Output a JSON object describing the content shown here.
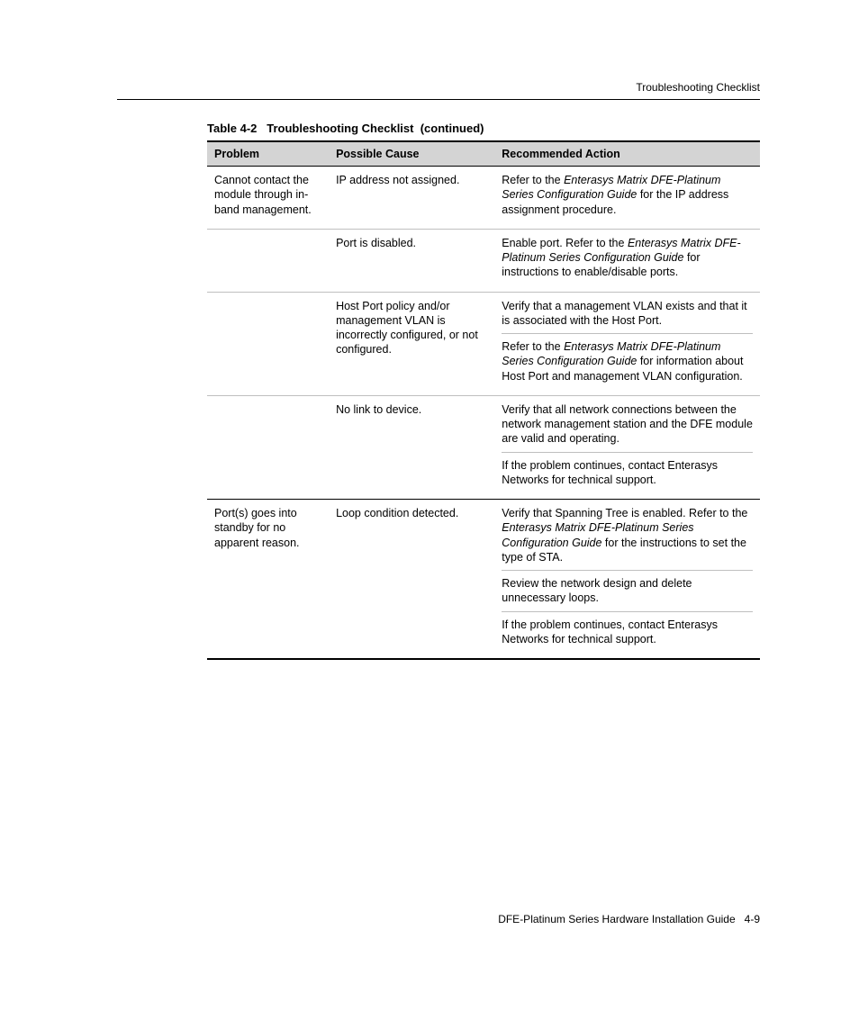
{
  "header": {
    "section_label": "Troubleshooting Checklist"
  },
  "table": {
    "caption_prefix": "Table 4-2",
    "caption_title": "Troubleshooting Checklist",
    "caption_suffix": "(continued)",
    "columns": {
      "problem": "Problem",
      "cause": "Possible Cause",
      "action": "Recommended Action"
    },
    "rows": [
      {
        "problem": "Cannot contact the module through in-band management.",
        "cause": "IP address not assigned.",
        "actions": [
          {
            "pre": "Refer to the ",
            "doc": "Enterasys Matrix DFE-Platinum Series Configuration Guide",
            "post": " for the IP address assignment procedure."
          }
        ]
      },
      {
        "problem": "",
        "cause": "Port is disabled.",
        "actions": [
          {
            "pre": "Enable port. Refer to the ",
            "doc": "Enterasys Matrix DFE-Platinum Series Configuration Guide",
            "post": " for instructions to enable/disable ports."
          }
        ]
      },
      {
        "problem": "",
        "cause": "Host Port policy and/or management VLAN is incorrectly configured, or not configured.",
        "actions": [
          {
            "pre": "Verify that a management VLAN exists and that it is associated with the Host Port.",
            "doc": "",
            "post": ""
          },
          {
            "pre": "Refer to the ",
            "doc": "Enterasys Matrix DFE-Platinum Series Configuration Guide",
            "post": " for information about Host Port and management VLAN configuration."
          }
        ]
      },
      {
        "problem": "",
        "cause": "No link to device.",
        "actions": [
          {
            "pre": "Verify that all network connections between the network management station and the DFE module are valid and operating.",
            "doc": "",
            "post": ""
          },
          {
            "pre": "If the problem continues, contact Enterasys Networks for technical support.",
            "doc": "",
            "post": ""
          }
        ]
      },
      {
        "problem": "Port(s) goes into standby for no apparent reason.",
        "cause": "Loop condition detected.",
        "actions": [
          {
            "pre": "Verify that Spanning Tree is enabled. Refer to the ",
            "doc": "Enterasys Matrix DFE-Platinum Series Configuration Guide",
            "post": " for the instructions to set the type of STA."
          },
          {
            "pre": "Review the network design and delete unnecessary loops.",
            "doc": "",
            "post": ""
          },
          {
            "pre": "If the problem continues, contact Enterasys Networks for technical support.",
            "doc": "",
            "post": ""
          }
        ]
      }
    ]
  },
  "footer": {
    "book_title": "DFE-Platinum Series Hardware Installation Guide",
    "page_number": "4-9"
  }
}
